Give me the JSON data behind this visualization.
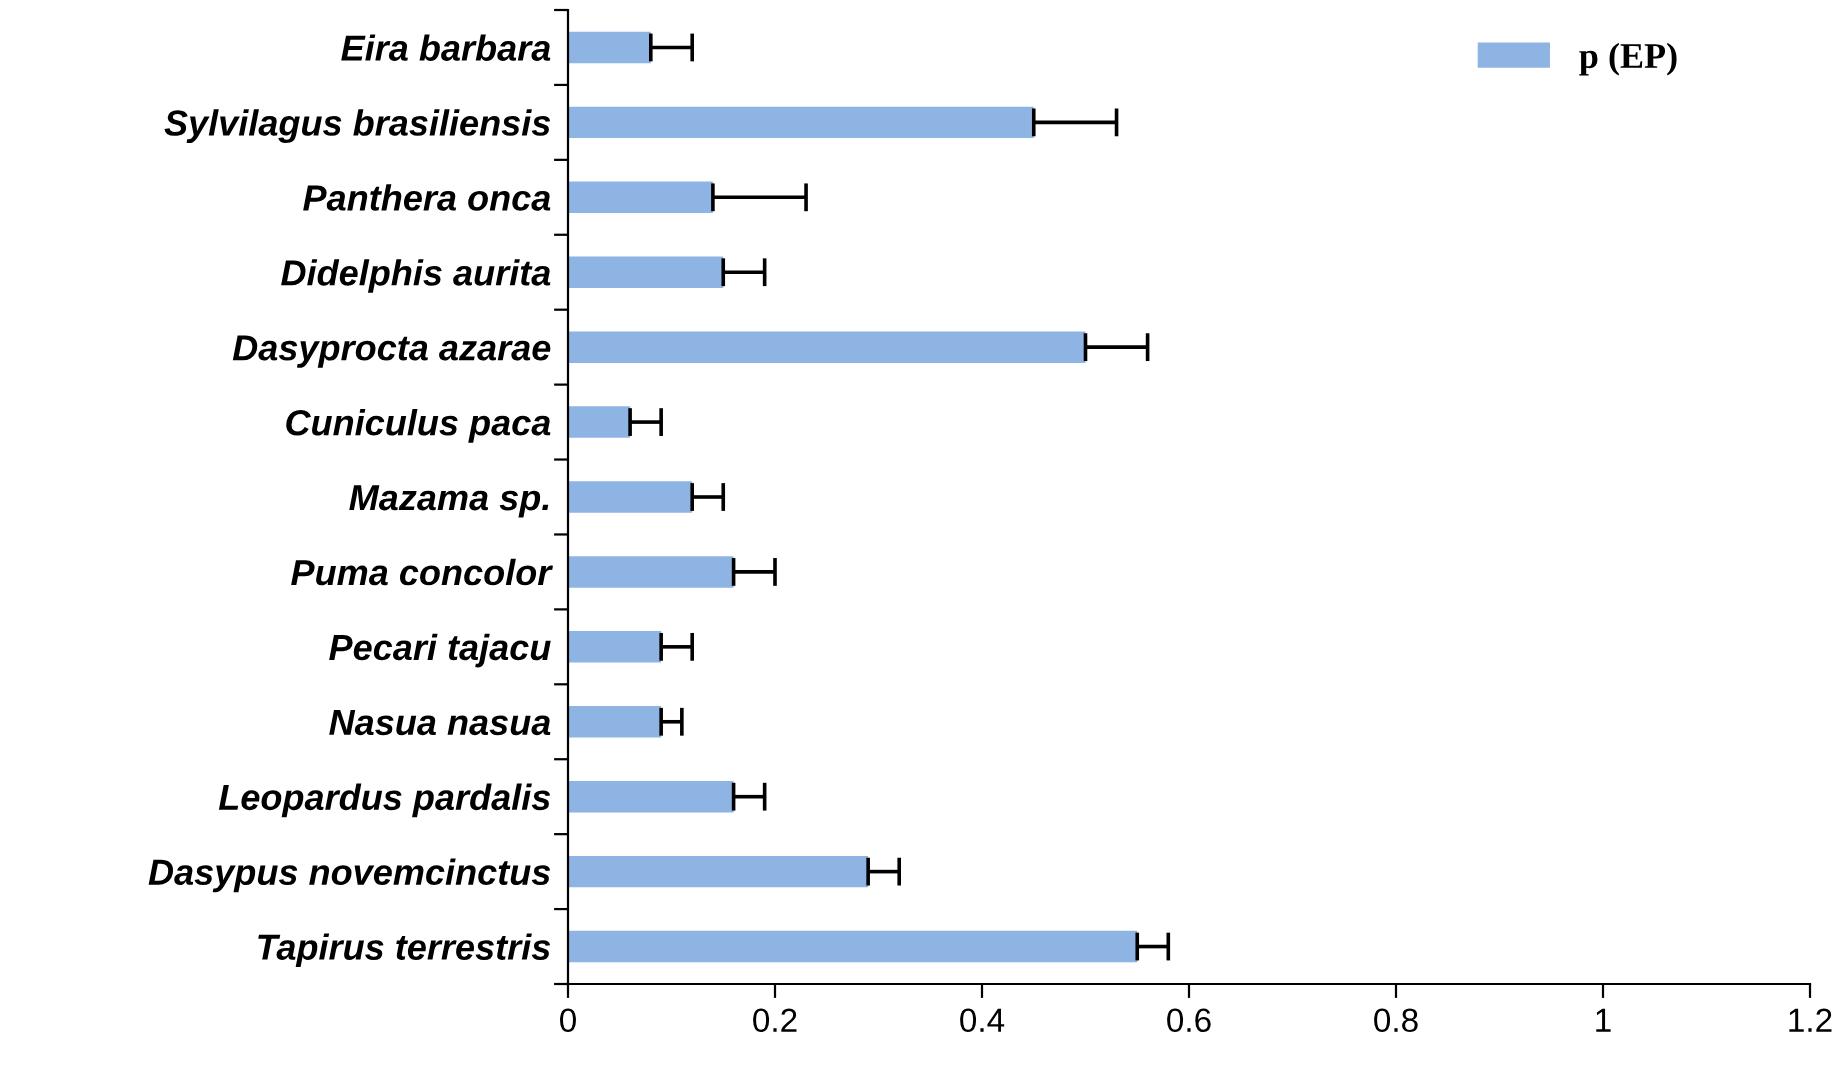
{
  "chart_data": {
    "type": "bar",
    "orientation": "horizontal",
    "categories": [
      "Eira barbara",
      "Sylvilagus brasiliensis",
      "Panthera onca",
      "Didelphis aurita",
      "Dasyprocta azarae",
      "Cuniculus paca",
      "Mazama sp.",
      "Puma concolor",
      "Pecari tajacu",
      "Nasua nasua",
      "Leopardus pardalis",
      "Dasypus novemcinctus",
      "Tapirus terrestris"
    ],
    "series": [
      {
        "name": "p (EP)",
        "color": "#8db4e2",
        "values": [
          0.08,
          0.45,
          0.14,
          0.15,
          0.5,
          0.06,
          0.12,
          0.16,
          0.09,
          0.09,
          0.16,
          0.29,
          0.55
        ],
        "errors": [
          [
            0.08,
            0.12
          ],
          [
            0.45,
            0.53
          ],
          [
            0.14,
            0.23
          ],
          [
            0.15,
            0.19
          ],
          [
            0.5,
            0.56
          ],
          [
            0.06,
            0.09
          ],
          [
            0.12,
            0.15
          ],
          [
            0.16,
            0.2
          ],
          [
            0.09,
            0.12
          ],
          [
            0.09,
            0.11
          ],
          [
            0.16,
            0.19
          ],
          [
            0.29,
            0.32
          ],
          [
            0.55,
            0.58
          ]
        ]
      }
    ],
    "xlim": [
      0,
      1.2
    ],
    "xticks": [
      0,
      0.2,
      0.4,
      0.6,
      0.8,
      1,
      1.2
    ],
    "legend": "top right",
    "grid": false
  }
}
